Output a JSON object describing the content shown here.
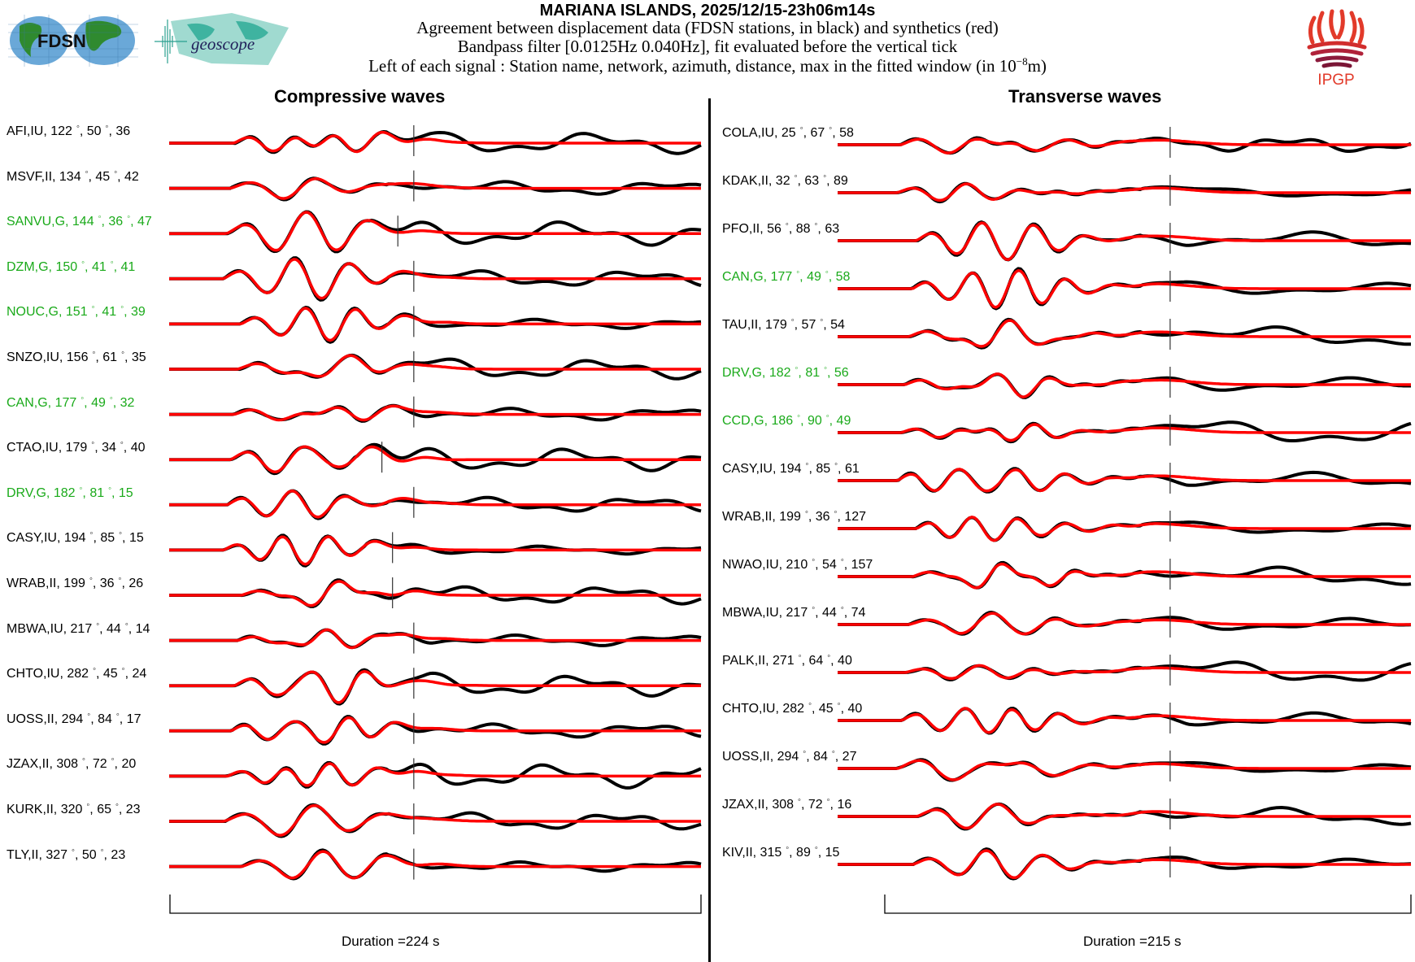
{
  "header": {
    "title": "MARIANA ISLANDS, 2025/12/15-23h06m14s",
    "line1": "Agreement between displacement data (FDSN stations, in black) and synthetics (red)",
    "line2": "Bandpass filter [0.0125Hz 0.040Hz], fit evaluated before the vertical tick",
    "line3_prefix": "Left of each signal : Station name, network, azimuth, distance, max in the fitted window (in 10",
    "line3_exp": "−8",
    "line3_suffix": "m)",
    "logos": {
      "left1": "FDSN",
      "left2": "geoscope",
      "right": "IPGP"
    }
  },
  "colors": {
    "data": "#000000",
    "synthetic": "#ff0000",
    "geoscope_station": "#1aaa1a",
    "default_label": "#000000"
  },
  "chart_data": [
    {
      "type": "line",
      "title": "Compressive waves",
      "xlabel": "Duration =224 s",
      "duration_s": 224,
      "legend": {
        "data": "black",
        "synthetics": "red"
      },
      "stations": [
        {
          "name": "AFI",
          "net": "IU",
          "az": "122",
          "dist": "50",
          "max": "36",
          "geoscope": false,
          "tick": 0.46,
          "seed": 1
        },
        {
          "name": "MSVF",
          "net": "II",
          "az": "134",
          "dist": "45",
          "max": "42",
          "geoscope": false,
          "tick": 0.46,
          "seed": 2
        },
        {
          "name": "SANVU",
          "net": "G",
          "az": "144",
          "dist": "36",
          "max": "47",
          "geoscope": true,
          "tick": 0.43,
          "seed": 3
        },
        {
          "name": "DZM",
          "net": "G",
          "az": "150",
          "dist": "41",
          "max": "41",
          "geoscope": true,
          "tick": 0.46,
          "seed": 4
        },
        {
          "name": "NOUC",
          "net": "G",
          "az": "151",
          "dist": "41",
          "max": "39",
          "geoscope": true,
          "tick": 0.46,
          "seed": 5
        },
        {
          "name": "SNZO",
          "net": "IU",
          "az": "156",
          "dist": "61",
          "max": "35",
          "geoscope": false,
          "tick": 0.46,
          "seed": 6
        },
        {
          "name": "CAN",
          "net": "G",
          "az": "177",
          "dist": "49",
          "max": "32",
          "geoscope": true,
          "tick": 0.46,
          "seed": 7
        },
        {
          "name": "CTAO",
          "net": "IU",
          "az": "179",
          "dist": "34",
          "max": "40",
          "geoscope": false,
          "tick": 0.4,
          "seed": 8
        },
        {
          "name": "DRV",
          "net": "G",
          "az": "182",
          "dist": "81",
          "max": "15",
          "geoscope": true,
          "tick": 0.46,
          "seed": 9
        },
        {
          "name": "CASY",
          "net": "IU",
          "az": "194",
          "dist": "85",
          "max": "15",
          "geoscope": false,
          "tick": 0.42,
          "seed": 10
        },
        {
          "name": "WRAB",
          "net": "II",
          "az": "199",
          "dist": "36",
          "max": "26",
          "geoscope": false,
          "tick": 0.42,
          "seed": 11
        },
        {
          "name": "MBWA",
          "net": "IU",
          "az": "217",
          "dist": "44",
          "max": "14",
          "geoscope": false,
          "tick": 0.46,
          "seed": 12
        },
        {
          "name": "CHTO",
          "net": "IU",
          "az": "282",
          "dist": "45",
          "max": "24",
          "geoscope": false,
          "tick": 0.46,
          "seed": 13
        },
        {
          "name": "UOSS",
          "net": "II",
          "az": "294",
          "dist": "84",
          "max": "17",
          "geoscope": false,
          "tick": 0.46,
          "seed": 14
        },
        {
          "name": "JZAX",
          "net": "II",
          "az": "308",
          "dist": "72",
          "max": "20",
          "geoscope": false,
          "tick": 0.46,
          "seed": 15
        },
        {
          "name": "KURK",
          "net": "II",
          "az": "320",
          "dist": "65",
          "max": "23",
          "geoscope": false,
          "tick": 0.46,
          "seed": 16
        },
        {
          "name": "TLY",
          "net": "II",
          "az": "327",
          "dist": "50",
          "max": "23",
          "geoscope": false,
          "tick": 0.46,
          "seed": 17
        }
      ]
    },
    {
      "type": "line",
      "title": "Transverse waves",
      "xlabel": "Duration =215 s",
      "duration_s": 215,
      "legend": {
        "data": "black",
        "synthetics": "red"
      },
      "stations": [
        {
          "name": "COLA",
          "net": "IU",
          "az": "25",
          "dist": "67",
          "max": "58",
          "geoscope": false,
          "tick": 0.58,
          "seed": 21
        },
        {
          "name": "KDAK",
          "net": "II",
          "az": "32",
          "dist": "63",
          "max": "89",
          "geoscope": false,
          "tick": 0.58,
          "seed": 22
        },
        {
          "name": "PFO",
          "net": "II",
          "az": "56",
          "dist": "88",
          "max": "63",
          "geoscope": false,
          "tick": 0.58,
          "seed": 23
        },
        {
          "name": "CAN",
          "net": "G",
          "az": "177",
          "dist": "49",
          "max": "58",
          "geoscope": true,
          "tick": 0.58,
          "seed": 24
        },
        {
          "name": "TAU",
          "net": "II",
          "az": "179",
          "dist": "57",
          "max": "54",
          "geoscope": false,
          "tick": 0.58,
          "seed": 25
        },
        {
          "name": "DRV",
          "net": "G",
          "az": "182",
          "dist": "81",
          "max": "56",
          "geoscope": true,
          "tick": 0.58,
          "seed": 26
        },
        {
          "name": "CCD",
          "net": "G",
          "az": "186",
          "dist": "90",
          "max": "49",
          "geoscope": true,
          "tick": 0.58,
          "seed": 27
        },
        {
          "name": "CASY",
          "net": "IU",
          "az": "194",
          "dist": "85",
          "max": "61",
          "geoscope": false,
          "tick": 0.58,
          "seed": 28
        },
        {
          "name": "WRAB",
          "net": "II",
          "az": "199",
          "dist": "36",
          "max": "127",
          "geoscope": false,
          "tick": 0.58,
          "seed": 29
        },
        {
          "name": "NWAO",
          "net": "IU",
          "az": "210",
          "dist": "54",
          "max": "157",
          "geoscope": false,
          "tick": 0.58,
          "seed": 30
        },
        {
          "name": "MBWA",
          "net": "IU",
          "az": "217",
          "dist": "44",
          "max": "74",
          "geoscope": false,
          "tick": 0.58,
          "seed": 31
        },
        {
          "name": "PALK",
          "net": "II",
          "az": "271",
          "dist": "64",
          "max": "40",
          "geoscope": false,
          "tick": 0.58,
          "seed": 32
        },
        {
          "name": "CHTO",
          "net": "IU",
          "az": "282",
          "dist": "45",
          "max": "40",
          "geoscope": false,
          "tick": 0.58,
          "seed": 33
        },
        {
          "name": "UOSS",
          "net": "II",
          "az": "294",
          "dist": "84",
          "max": "27",
          "geoscope": false,
          "tick": 0.58,
          "seed": 34
        },
        {
          "name": "JZAX",
          "net": "II",
          "az": "308",
          "dist": "72",
          "max": "16",
          "geoscope": false,
          "tick": 0.58,
          "seed": 35
        },
        {
          "name": "KIV",
          "net": "II",
          "az": "315",
          "dist": "89",
          "max": "15",
          "geoscope": false,
          "tick": 0.58,
          "seed": 36
        }
      ]
    }
  ]
}
